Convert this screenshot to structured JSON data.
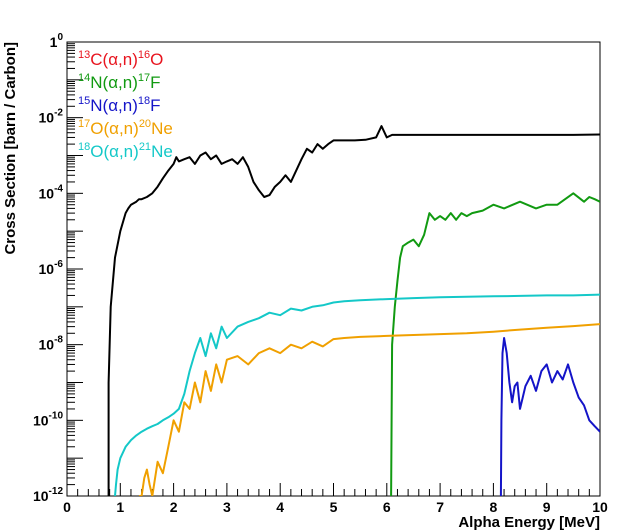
{
  "chart_data": {
    "type": "line",
    "title": "",
    "xlabel": "Alpha Energy [MeV]",
    "ylabel": "Cross Section [barn / Carbon]",
    "xlim": [
      0,
      10
    ],
    "ylim": [
      1e-12,
      1
    ],
    "yscale": "log",
    "grid": false,
    "legend_position": "top-left",
    "x_ticks": [
      "0",
      "1",
      "2",
      "3",
      "4",
      "5",
      "6",
      "7",
      "8",
      "9",
      "10"
    ],
    "y_ticks": [
      {
        "base": "10",
        "exp": "-12",
        "value": 1e-12
      },
      {
        "base": "10",
        "exp": "-10",
        "value": 1e-10
      },
      {
        "base": "10",
        "exp": "-8",
        "value": 1e-08
      },
      {
        "base": "10",
        "exp": "-6",
        "value": 1e-06
      },
      {
        "base": "10",
        "exp": "-4",
        "value": 0.0001
      },
      {
        "base": "10",
        "exp": "-2",
        "value": 0.01
      },
      {
        "base": "1",
        "exp": "0",
        "value": 1
      }
    ],
    "series": [
      {
        "legend": {
          "pre_sup": "13",
          "head": "C(α,n)",
          "post_sup": "16",
          "tail": "O"
        },
        "color": "#e8141e",
        "line_color": "#000000",
        "x": [
          0.78,
          0.78,
          0.82,
          0.9,
          1.0,
          1.1,
          1.15,
          1.2,
          1.3,
          1.35,
          1.4,
          1.5,
          1.6,
          1.7,
          1.8,
          1.9,
          2.0,
          2.05,
          2.1,
          2.2,
          2.3,
          2.4,
          2.5,
          2.6,
          2.7,
          2.8,
          2.9,
          3.0,
          3.1,
          3.2,
          3.3,
          3.4,
          3.5,
          3.6,
          3.7,
          3.8,
          3.9,
          4.0,
          4.1,
          4.2,
          4.3,
          4.4,
          4.5,
          4.6,
          4.7,
          4.8,
          4.9,
          5.0,
          5.2,
          5.4,
          5.6,
          5.8,
          5.9,
          6.0,
          6.1,
          6.5,
          7.0,
          7.5,
          8.0,
          8.5,
          9.0,
          9.5,
          10.0
        ],
        "y": [
          1e-12,
          1e-09,
          1e-07,
          2e-06,
          1e-05,
          3e-05,
          4e-05,
          5e-05,
          6e-05,
          7e-05,
          7e-05,
          8e-05,
          0.0001,
          0.00015,
          0.00025,
          0.0004,
          0.0006,
          0.0009,
          0.0007,
          0.0008,
          0.0009,
          0.0006,
          0.001,
          0.0012,
          0.0008,
          0.001,
          0.0006,
          0.0007,
          0.0008,
          0.0006,
          0.0009,
          0.0005,
          0.0002,
          0.00012,
          8e-05,
          9e-05,
          0.00015,
          0.0002,
          0.0003,
          0.0002,
          0.0004,
          0.0008,
          0.0015,
          0.0012,
          0.002,
          0.0015,
          0.002,
          0.0025,
          0.0025,
          0.0025,
          0.0026,
          0.003,
          0.006,
          0.003,
          0.0035,
          0.0035,
          0.0035,
          0.0035,
          0.0035,
          0.0035,
          0.0035,
          0.0035,
          0.0036
        ]
      },
      {
        "legend": {
          "pre_sup": "14",
          "head": "N(α,n)",
          "post_sup": "17",
          "tail": "F"
        },
        "color": "#119a11",
        "x": [
          6.08,
          6.09,
          6.1,
          6.15,
          6.2,
          6.25,
          6.3,
          6.4,
          6.5,
          6.6,
          6.7,
          6.8,
          6.9,
          7.0,
          7.1,
          7.2,
          7.3,
          7.4,
          7.5,
          7.6,
          7.8,
          8.0,
          8.2,
          8.5,
          8.8,
          9.0,
          9.2,
          9.5,
          9.7,
          9.8,
          9.9,
          10.0
        ],
        "y": [
          1e-12,
          1e-10,
          1e-08,
          1e-07,
          5e-07,
          2e-06,
          4e-06,
          5e-06,
          6e-06,
          4e-06,
          8e-06,
          3e-05,
          2e-05,
          2.5e-05,
          2e-05,
          3e-05,
          2e-05,
          3e-05,
          2.5e-05,
          3e-05,
          3.5e-05,
          5e-05,
          4e-05,
          6e-05,
          4e-05,
          5e-05,
          5e-05,
          0.0001,
          6e-05,
          8e-05,
          7e-05,
          6e-05
        ]
      },
      {
        "legend": {
          "pre_sup": "15",
          "head": "N(α,n)",
          "post_sup": "18",
          "tail": "F"
        },
        "color": "#1414c8",
        "x": [
          8.14,
          8.15,
          8.17,
          8.2,
          8.25,
          8.3,
          8.35,
          8.4,
          8.45,
          8.5,
          8.55,
          8.6,
          8.7,
          8.8,
          8.9,
          9.0,
          9.1,
          9.2,
          9.3,
          9.4,
          9.5,
          9.6,
          9.7,
          9.8,
          9.9,
          10.0
        ],
        "y": [
          1e-12,
          1e-10,
          6e-09,
          1.5e-08,
          6e-09,
          1e-09,
          3e-10,
          8e-10,
          1e-09,
          2e-10,
          4e-10,
          8e-10,
          1.5e-09,
          6e-10,
          2e-09,
          3e-09,
          1e-09,
          2e-09,
          1.2e-09,
          3e-09,
          1e-09,
          4e-10,
          2.5e-10,
          1e-10,
          7e-11,
          5e-11
        ]
      },
      {
        "legend": {
          "pre_sup": "17",
          "head": "O(α,n)",
          "post_sup": "20",
          "tail": "Ne"
        },
        "color": "#f0a000",
        "x": [
          1.35,
          1.4,
          1.45,
          1.5,
          1.55,
          1.6,
          1.7,
          1.8,
          1.9,
          2.0,
          2.1,
          2.2,
          2.3,
          2.4,
          2.5,
          2.6,
          2.7,
          2.8,
          2.9,
          3.0,
          3.2,
          3.4,
          3.6,
          3.8,
          4.0,
          4.2,
          4.4,
          4.6,
          4.8,
          5.0,
          5.2,
          5.5,
          6.0,
          6.5,
          7.0,
          7.5,
          8.0,
          8.5,
          9.0,
          9.5,
          10.0
        ],
        "y": [
          1e-12,
          1e-12,
          3e-12,
          5e-12,
          2e-12,
          1e-12,
          8e-12,
          4e-12,
          2e-11,
          1e-10,
          5e-11,
          3e-10,
          2e-10,
          1e-09,
          3e-10,
          2e-09,
          6e-10,
          3e-09,
          1e-09,
          4e-09,
          5e-09,
          3e-09,
          6e-09,
          8e-09,
          6e-09,
          1e-08,
          8e-09,
          1.2e-08,
          9e-09,
          1.4e-08,
          1.5e-08,
          1.6e-08,
          1.7e-08,
          1.8e-08,
          1.9e-08,
          2e-08,
          2.2e-08,
          2.5e-08,
          2.8e-08,
          3.1e-08,
          3.5e-08
        ]
      },
      {
        "legend": {
          "pre_sup": "18",
          "head": "O(α,n)",
          "post_sup": "21",
          "tail": "Ne"
        },
        "color": "#14c8c8",
        "x": [
          0.9,
          0.92,
          0.95,
          1.0,
          1.1,
          1.2,
          1.3,
          1.4,
          1.5,
          1.6,
          1.7,
          1.8,
          1.9,
          2.0,
          2.1,
          2.2,
          2.3,
          2.4,
          2.5,
          2.6,
          2.7,
          2.8,
          2.9,
          3.0,
          3.2,
          3.4,
          3.6,
          3.8,
          4.0,
          4.2,
          4.4,
          4.6,
          4.8,
          5.0,
          5.2,
          5.5,
          6.0,
          6.5,
          7.0,
          7.5,
          8.0,
          8.5,
          9.0,
          9.5,
          10.0
        ],
        "y": [
          1e-12,
          2e-12,
          5e-12,
          1e-11,
          2e-11,
          3e-11,
          4e-11,
          5e-11,
          6e-11,
          7e-11,
          8e-11,
          1e-10,
          1.2e-10,
          1.5e-10,
          2e-10,
          5e-10,
          2e-09,
          6e-09,
          1.5e-08,
          5e-09,
          2e-08,
          8e-09,
          3e-08,
          1.5e-08,
          3e-08,
          4e-08,
          5e-08,
          7e-08,
          6e-08,
          9e-08,
          8e-08,
          1e-07,
          1.1e-07,
          1.3e-07,
          1.4e-07,
          1.5e-07,
          1.6e-07,
          1.7e-07,
          1.8e-07,
          1.85e-07,
          1.9e-07,
          1.95e-07,
          2e-07,
          2e-07,
          2.1e-07
        ]
      }
    ]
  }
}
